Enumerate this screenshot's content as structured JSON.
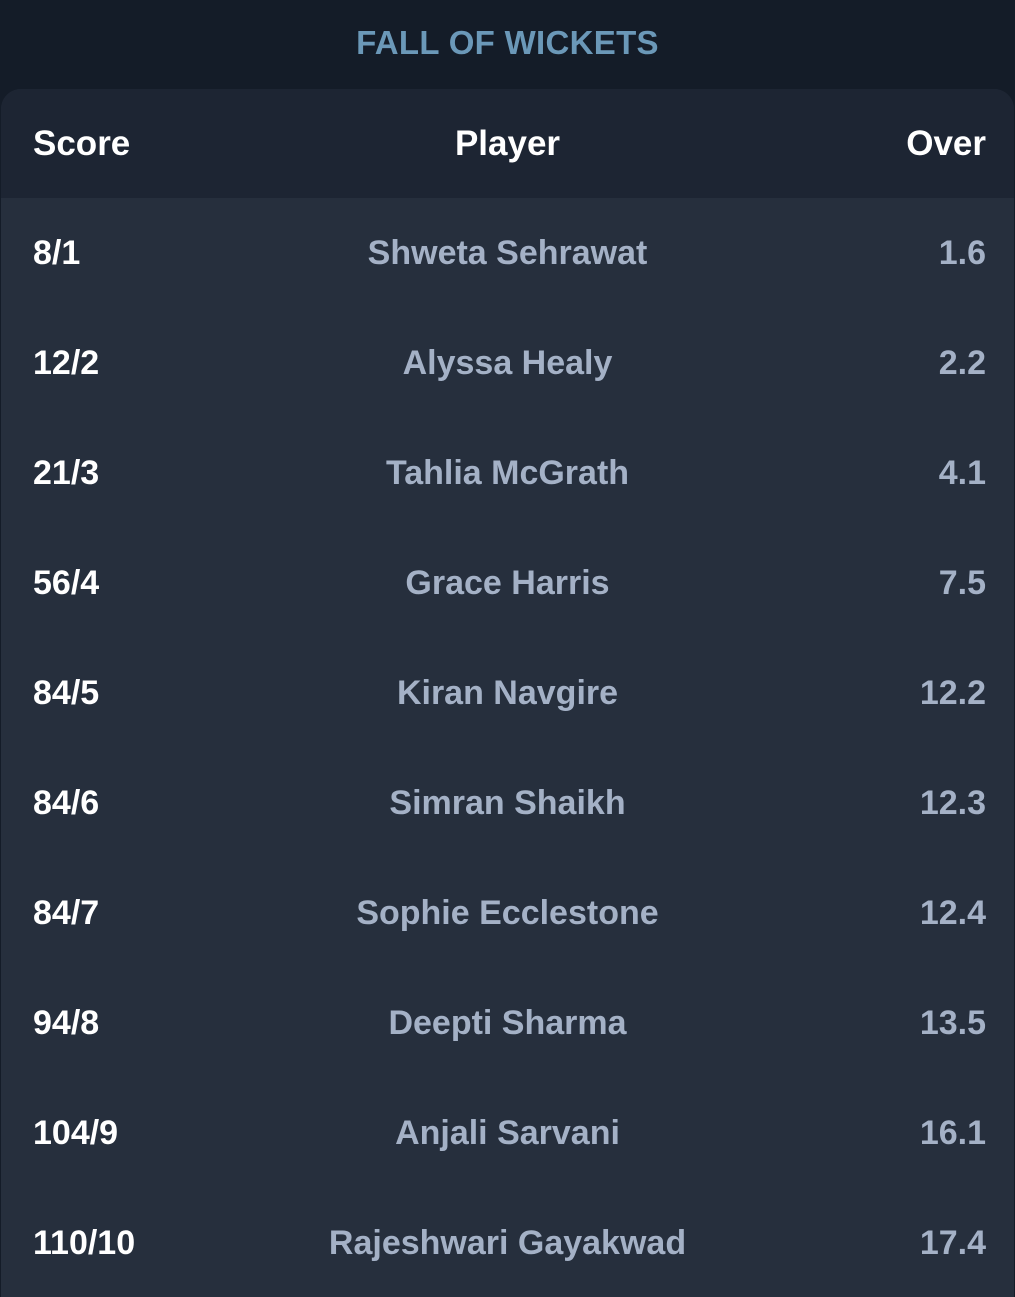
{
  "section": {
    "title": "FALL OF WICKETS"
  },
  "table": {
    "columns": {
      "score": "Score",
      "player": "Player",
      "over": "Over"
    },
    "rows": [
      {
        "score": "8/1",
        "player": "Shweta Sehrawat",
        "over": "1.6"
      },
      {
        "score": "12/2",
        "player": "Alyssa Healy",
        "over": "2.2"
      },
      {
        "score": "21/3",
        "player": "Tahlia McGrath",
        "over": "4.1"
      },
      {
        "score": "56/4",
        "player": "Grace Harris",
        "over": "7.5"
      },
      {
        "score": "84/5",
        "player": "Kiran Navgire",
        "over": "12.2"
      },
      {
        "score": "84/6",
        "player": "Simran Shaikh",
        "over": "12.3"
      },
      {
        "score": "84/7",
        "player": "Sophie Ecclestone",
        "over": "12.4"
      },
      {
        "score": "94/8",
        "player": "Deepti Sharma",
        "over": "13.5"
      },
      {
        "score": "104/9",
        "player": "Anjali Sarvani",
        "over": "16.1"
      },
      {
        "score": "110/10",
        "player": "Rajeshwari Gayakwad",
        "over": "17.4"
      }
    ]
  },
  "colors": {
    "page_background": "#141c28",
    "card_background": "#262f3d",
    "header_background": "#1d2533",
    "title_accent": "#6b98b8",
    "muted_text": "#a4b1c6",
    "primary_text": "#ffffff"
  }
}
